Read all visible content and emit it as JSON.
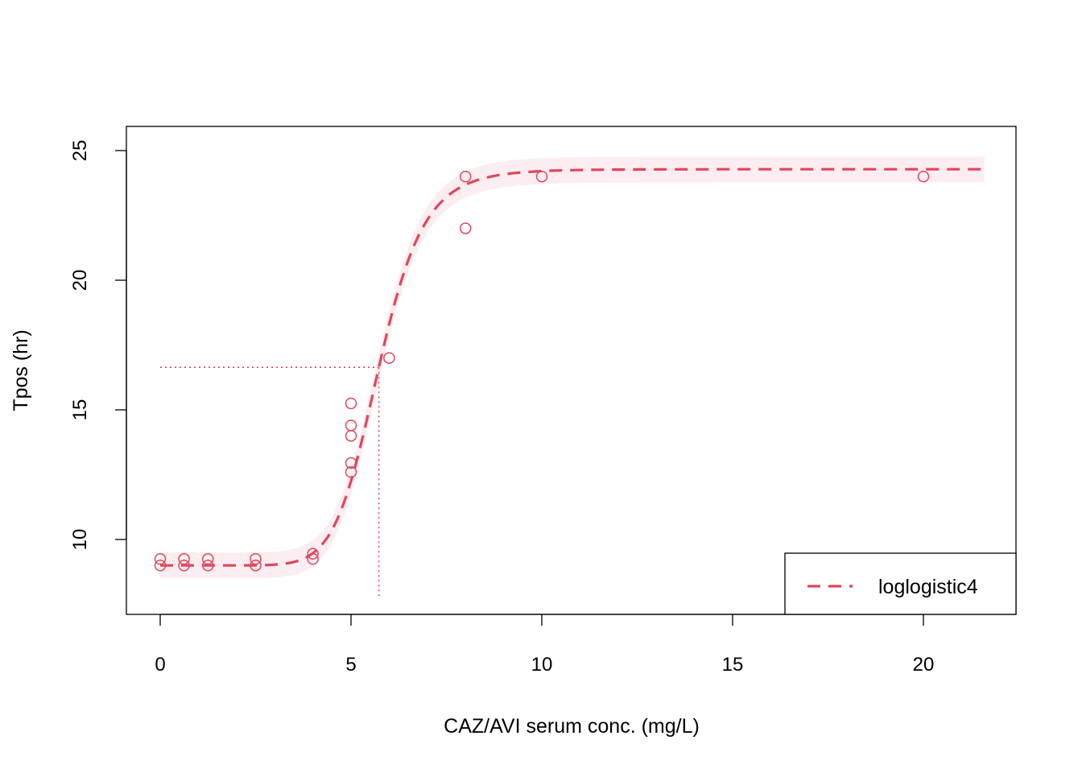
{
  "chart_data": {
    "type": "scatter",
    "title": "",
    "xlabel": "CAZ/AVI serum conc. (mg/L)",
    "ylabel": "Tpos (hr)",
    "xlim": [
      -0.9,
      22.5
    ],
    "ylim": [
      7.8,
      26.6
    ],
    "x_ticks": [
      0,
      5,
      10,
      15,
      20
    ],
    "x_tick_labels": [
      "0",
      "5",
      "10",
      "15",
      "20"
    ],
    "y_ticks": [
      10,
      15,
      20,
      25
    ],
    "y_tick_labels": [
      "10",
      "15",
      "20",
      "25"
    ],
    "grid": false,
    "legend_position": "bottom-right",
    "color": "#e0465c",
    "band_color": "#fcedf0",
    "points": [
      [
        0,
        9.0
      ],
      [
        0,
        9.25
      ],
      [
        0.625,
        9.0
      ],
      [
        0.625,
        9.25
      ],
      [
        1.25,
        9.0
      ],
      [
        1.25,
        9.25
      ],
      [
        2.5,
        9.0
      ],
      [
        2.5,
        9.25
      ],
      [
        4,
        9.25
      ],
      [
        4,
        9.45
      ],
      [
        5,
        12.6
      ],
      [
        5,
        12.95
      ],
      [
        5,
        14.0
      ],
      [
        5,
        14.4
      ],
      [
        5,
        15.25
      ],
      [
        6,
        17.0
      ],
      [
        8,
        22.0
      ],
      [
        8,
        24.0
      ],
      [
        10,
        24.0
      ],
      [
        20,
        24.0
      ]
    ],
    "series": [
      {
        "name": "loglogistic4",
        "model": "loglogistic4",
        "params": {
          "lower": 9.0,
          "upper": 24.28,
          "ec50": 5.73,
          "slope": 9.6
        },
        "x_range": [
          0,
          21.6
        ],
        "band_halfwidth": 0.5,
        "line_style": "dashed"
      }
    ],
    "annotations": {
      "ec50_x": 5.73,
      "ec50_y": 16.64,
      "style": "dotted"
    }
  }
}
